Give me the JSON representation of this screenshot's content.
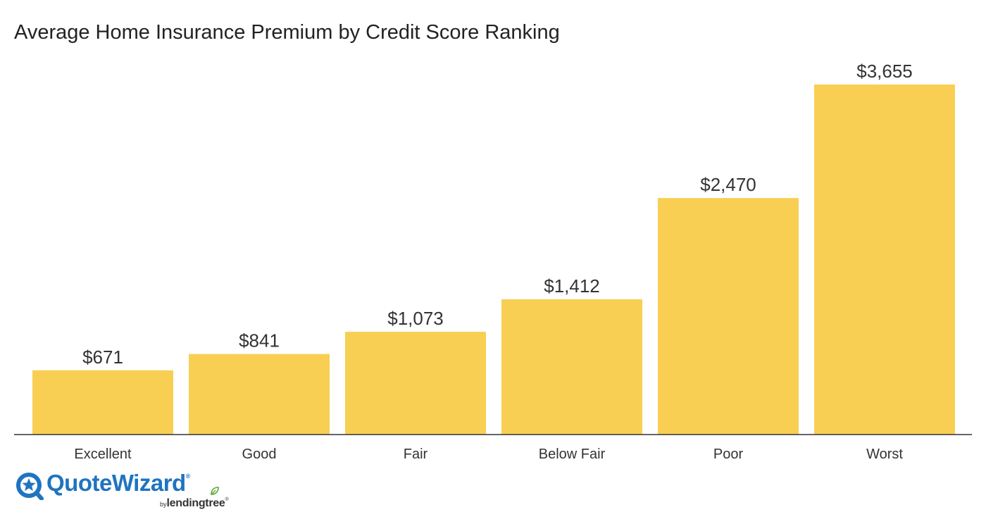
{
  "chart_data": {
    "type": "bar",
    "title": "Average Home Insurance Premium by Credit Score Ranking",
    "categories": [
      "Excellent",
      "Good",
      "Fair",
      "Below Fair",
      "Poor",
      "Worst"
    ],
    "values": [
      671,
      841,
      1073,
      1412,
      2470,
      3655
    ],
    "value_labels": [
      "$671",
      "$841",
      "$1,073",
      "$1,412",
      "$2,470",
      "$3,655"
    ],
    "xlabel": "",
    "ylabel": "",
    "ylim": [
      0,
      3655
    ],
    "grid": false,
    "bar_color": "#f8cf53"
  },
  "branding": {
    "brand_name": "QuoteWizard",
    "brand_mark": "®",
    "by_text": "by",
    "parent_name": "lendingtree",
    "parent_mark": "®",
    "brand_color": "#1f74bf",
    "leaf_color": "#5aa832"
  }
}
